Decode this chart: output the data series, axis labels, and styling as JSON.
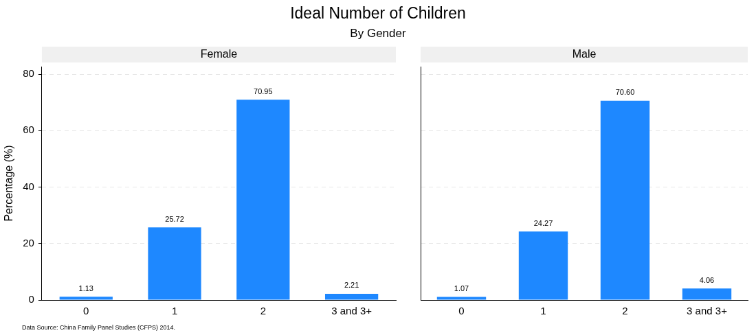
{
  "chart_data": [
    {
      "type": "other",
      "title": "Ideal Number of Children",
      "subtitle": "By Gender",
      "annotations": [
        "Data Source: China Family Panel Studies (CFPS) 2014."
      ]
    },
    {
      "type": "bar",
      "title": "Female",
      "ylabel": "Percentage (%)",
      "categories": [
        "0",
        "1",
        "2",
        "3 and 3+"
      ],
      "values": [
        1.13,
        25.72,
        70.95,
        2.21
      ],
      "value_labels": [
        "1.13",
        "25.72",
        "70.95",
        "2.21"
      ],
      "color": "#1e88ff",
      "ylim": [
        0,
        82.7
      ],
      "yticks": [
        0,
        20,
        40,
        60,
        80
      ],
      "grid": "y",
      "legend": false
    },
    {
      "type": "bar",
      "title": "Male",
      "categories": [
        "0",
        "1",
        "2",
        "3 and 3+"
      ],
      "values": [
        1.07,
        24.27,
        70.6,
        4.06
      ],
      "value_labels": [
        "1.07",
        "24.27",
        "70.60",
        "4.06"
      ],
      "color": "#1e88ff",
      "ylim": [
        0,
        82.7
      ],
      "yticks": [
        0,
        20,
        40,
        60,
        80
      ],
      "grid": "y",
      "legend": false,
      "tick_labels": "x"
    }
  ]
}
